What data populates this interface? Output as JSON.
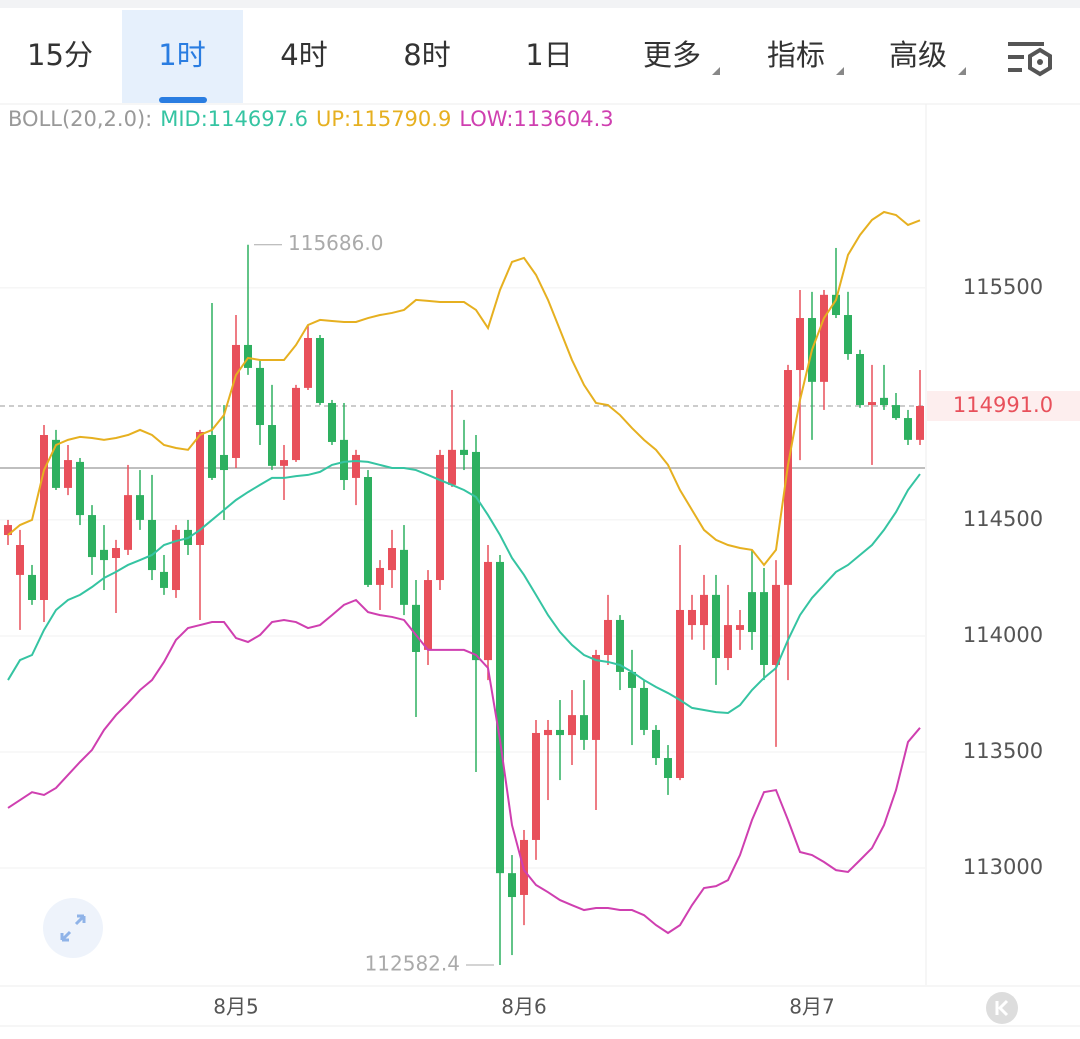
{
  "tabs": [
    "15分",
    "1时",
    "4时",
    "8时",
    "1日",
    "更多",
    "指标",
    "高级"
  ],
  "selected_tab": 1,
  "chart_data": {
    "type": "candlestick",
    "indicator": "BOLL(20,2.0):",
    "categories": [
      null,
      null,
      null,
      null,
      null,
      null,
      null,
      null,
      null,
      null,
      null,
      null,
      null,
      null,
      null,
      null,
      null,
      null,
      null,
      "8月5",
      null,
      null,
      null,
      null,
      null,
      null,
      null,
      null,
      null,
      null,
      null,
      null,
      null,
      null,
      null,
      null,
      null,
      null,
      null,
      null,
      null,
      null,
      null,
      "8月6",
      null,
      null,
      null,
      null,
      null,
      null,
      null,
      null,
      null,
      null,
      null,
      null,
      null,
      null,
      null,
      null,
      null,
      null,
      null,
      null,
      null,
      null,
      null,
      "8月7",
      null,
      null,
      null,
      null,
      null,
      null,
      null,
      null,
      null
    ],
    "open": [
      114435,
      114263,
      114263,
      114155,
      114845,
      114638,
      114750,
      114521,
      114371,
      114336,
      114371,
      114607,
      114500,
      114276,
      114198,
      114457,
      114392,
      114866,
      114780,
      114767,
      115254,
      115155,
      114909,
      114733,
      114758,
      115069,
      115284,
      115004,
      114845,
      114681,
      114685,
      114220,
      114284,
      114371,
      114134,
      113940,
      114241,
      114651,
      114802,
      114793,
      113896,
      114319,
      112978,
      112884,
      113121,
      113573,
      113595,
      113573,
      113659,
      113552,
      113918,
      114069,
      113845,
      113776,
      113595,
      113474,
      113388,
      114047,
      114047,
      114177,
      113905,
      114026,
      114189,
      114189,
      113875,
      114220,
      115146,
      115370,
      115095,
      115470,
      115383,
      115215,
      114995,
      115026,
      114995,
      114939,
      114845
    ],
    "high": [
      114500,
      114457,
      114306,
      114909,
      114888,
      114823,
      114767,
      114564,
      114478,
      114414,
      114737,
      114715,
      114694,
      114349,
      114478,
      114500,
      114888,
      115435,
      114995,
      115383,
      115686,
      115190,
      115082,
      114823,
      115082,
      115340,
      115297,
      115017,
      115004,
      114802,
      114715,
      114327,
      114457,
      114478,
      114241,
      114284,
      114802,
      115060,
      114931,
      114866,
      114392,
      114349,
      113056,
      113164,
      113638,
      113638,
      113724,
      113767,
      113810,
      113940,
      114177,
      114090,
      113940,
      113810,
      113616,
      113530,
      114392,
      114177,
      114263,
      114263,
      114220,
      114112,
      114371,
      114293,
      114327,
      115168,
      115491,
      115483,
      115491,
      115672,
      115483,
      115233,
      115168,
      115168,
      115047,
      114974,
      115146
    ],
    "low": [
      114392,
      114026,
      114134,
      114060,
      114629,
      114607,
      114478,
      114263,
      114198,
      114099,
      114349,
      114457,
      114241,
      114177,
      114164,
      114349,
      114069,
      114672,
      114500,
      114724,
      115125,
      114823,
      114715,
      114586,
      114750,
      115060,
      114995,
      114823,
      114629,
      114564,
      114211,
      114112,
      114207,
      114090,
      113651,
      113875,
      114198,
      114642,
      114715,
      113414,
      113810,
      112582.4,
      112625,
      112754,
      113035,
      113293,
      113379,
      113444,
      113509,
      113250,
      113875,
      113767,
      113530,
      113573,
      113444,
      113315,
      113379,
      113984,
      113940,
      113789,
      113853,
      113940,
      113940,
      113810,
      113522,
      113810,
      114758,
      114845,
      114974,
      115370,
      115190,
      114983,
      114737,
      114974,
      114931,
      114823,
      114823
    ],
    "close": [
      114478,
      114392,
      114155,
      114866,
      114638,
      114758,
      114521,
      114340,
      114327,
      114379,
      114607,
      114500,
      114284,
      114207,
      114457,
      114392,
      114879,
      114681,
      114715,
      115254,
      115155,
      114909,
      114733,
      114758,
      115069,
      115284,
      115004,
      114836,
      114672,
      114780,
      114220,
      114293,
      114379,
      114134,
      113931,
      114241,
      114780,
      114802,
      114780,
      113896,
      114319,
      112978,
      112875,
      113121,
      113582,
      113595,
      113573,
      113659,
      113552,
      113918,
      114069,
      113845,
      113776,
      113595,
      113474,
      113388,
      114112,
      114112,
      114177,
      113905,
      114047,
      114047,
      114017,
      113875,
      114220,
      115146,
      115370,
      115095,
      115470,
      115383,
      115215,
      114995,
      115008,
      114995,
      114939,
      114845,
      114991
    ],
    "up_color": "#e8505b",
    "down_color": "#2eb060",
    "series": [
      {
        "name": "MID:114697.6",
        "color": "#35c4a2",
        "values": [
          113810,
          113896,
          113918,
          114026,
          114112,
          114155,
          114177,
          114211,
          114250,
          114276,
          114306,
          114327,
          114349,
          114392,
          114409,
          114422,
          114457,
          114500,
          114543,
          114586,
          114620,
          114651,
          114681,
          114681,
          114689,
          114694,
          114707,
          114737,
          114750,
          114754,
          114750,
          114737,
          114724,
          114724,
          114715,
          114694,
          114672,
          114651,
          114629,
          114599,
          114521,
          114435,
          114336,
          114263,
          114177,
          114090,
          114017,
          113961,
          113918,
          113896,
          113888,
          113875,
          113845,
          113810,
          113780,
          113754,
          113724,
          113690,
          113681,
          113672,
          113668,
          113702,
          113767,
          113819,
          113862,
          113983,
          114090,
          114164,
          114220,
          114276,
          114306,
          114349,
          114392,
          114457,
          114534,
          114629,
          114697.6
        ]
      },
      {
        "name": "UP:115790.9",
        "color": "#e6b020",
        "values": [
          114435,
          114478,
          114500,
          114715,
          114823,
          114845,
          114858,
          114853,
          114845,
          114853,
          114866,
          114888,
          114866,
          114823,
          114810,
          114802,
          114866,
          114888,
          114952,
          115125,
          115198,
          115189,
          115189,
          115189,
          115254,
          115340,
          115362,
          115357,
          115353,
          115353,
          115370,
          115383,
          115392,
          115405,
          115448,
          115444,
          115439,
          115439,
          115439,
          115405,
          115327,
          115491,
          115612,
          115629,
          115556,
          115448,
          115319,
          115189,
          115082,
          115004,
          114995,
          114952,
          114896,
          114845,
          114802,
          114737,
          114629,
          114543,
          114457,
          114414,
          114392,
          114379,
          114371,
          114306,
          114371,
          114737,
          115017,
          115233,
          115370,
          115448,
          115642,
          115728,
          115793,
          115827,
          115814,
          115771,
          115790.9
        ]
      },
      {
        "name": "LOW:113604.3",
        "color": "#cf3fb0",
        "values": [
          113259,
          113293,
          113327,
          113315,
          113345,
          113401,
          113457,
          113509,
          113595,
          113659,
          113711,
          113767,
          113810,
          113888,
          113983,
          114034,
          114047,
          114060,
          114060,
          113991,
          113974,
          114004,
          114060,
          114069,
          114060,
          114034,
          114047,
          114090,
          114134,
          114155,
          114103,
          114090,
          114082,
          114069,
          114004,
          113940,
          113940,
          113940,
          113940,
          113918,
          113862,
          113552,
          113185,
          112991,
          112927,
          112896,
          112862,
          112840,
          112819,
          112828,
          112828,
          112819,
          112819,
          112797,
          112754,
          112720,
          112754,
          112840,
          112914,
          112922,
          112948,
          113056,
          113207,
          113327,
          113336,
          113207,
          113069,
          113056,
          113026,
          112991,
          112983,
          113034,
          113086,
          113185,
          113336,
          113543,
          113604.3
        ]
      }
    ],
    "ylim": [
      112496,
      116288
    ],
    "yticks": [
      115500,
      114500,
      114000,
      113500,
      113000
    ],
    "grid": true,
    "last_price": {
      "value": 114991,
      "label": "114991.0"
    },
    "reference_line": 114724,
    "max_label": {
      "value": 115686,
      "label": "115686.0"
    },
    "min_label": {
      "value": 112582.4,
      "label": "112582.4"
    }
  }
}
